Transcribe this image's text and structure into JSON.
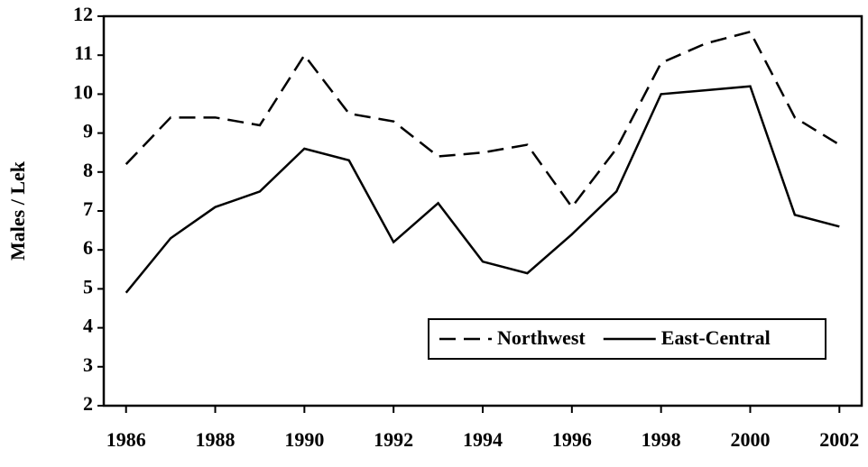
{
  "chart_data": {
    "type": "line",
    "y_label": "Males / Lek",
    "x": [
      1986,
      1987,
      1988,
      1989,
      1990,
      1991,
      1992,
      1993,
      1994,
      1995,
      1996,
      1997,
      1998,
      1999,
      2000,
      2001,
      2002
    ],
    "series": [
      {
        "name": "Northwest",
        "color": "#000000",
        "dash": "dashed",
        "values": [
          8.2,
          9.4,
          9.4,
          9.2,
          11.0,
          9.5,
          9.3,
          8.4,
          8.5,
          8.7,
          7.1,
          8.6,
          10.8,
          11.3,
          11.6,
          9.4,
          8.7
        ]
      },
      {
        "name": "East-Central",
        "color": "#000000",
        "dash": "solid",
        "values": [
          4.9,
          6.3,
          7.1,
          7.5,
          8.6,
          8.3,
          6.2,
          7.2,
          5.7,
          5.4,
          6.4,
          7.5,
          10.0,
          10.1,
          10.2,
          6.9,
          6.6
        ]
      }
    ],
    "xlim": [
      1985.5,
      2002.5
    ],
    "xticks": [
      1986,
      1988,
      1990,
      1992,
      1994,
      1996,
      1998,
      2000,
      2002
    ],
    "ylim": [
      2,
      12
    ],
    "yticks": [
      2,
      3,
      4,
      5,
      6,
      7,
      8,
      9,
      10,
      11,
      12
    ],
    "legend": "lower right",
    "grid": false
  }
}
